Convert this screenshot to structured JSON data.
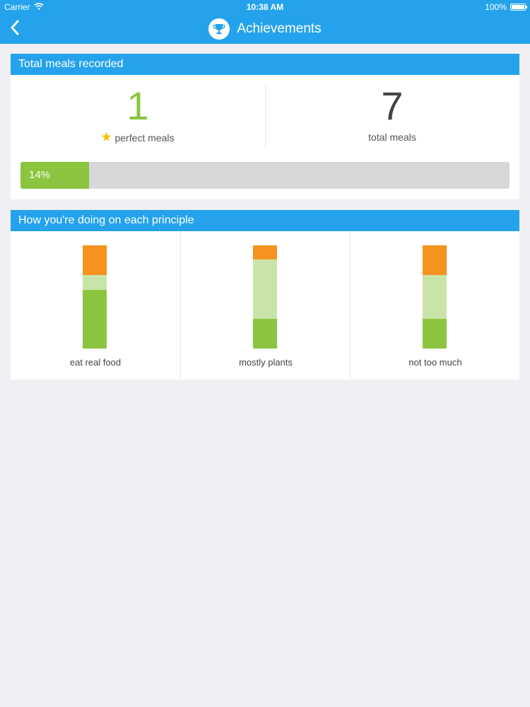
{
  "status_bar": {
    "carrier": "Carrier",
    "time": "10:38 AM",
    "battery": "100%"
  },
  "nav": {
    "title": "Achievements",
    "back_icon": "chevron-left-icon",
    "title_icon": "trophy-icon"
  },
  "meals": {
    "header": "Total meals recorded",
    "perfect_value": "1",
    "perfect_label": "perfect meals",
    "total_value": "7",
    "total_label": "total meals",
    "progress_label": "14%",
    "progress_fraction": 0.14
  },
  "principles": {
    "header": "How you're doing on each principle",
    "items": [
      {
        "label": "eat real food",
        "segments": [
          0.29,
          0.14,
          0.57
        ]
      },
      {
        "label": "mostly plants",
        "segments": [
          0.14,
          0.57,
          0.29
        ]
      },
      {
        "label": "not too much",
        "segments": [
          0.29,
          0.42,
          0.29
        ]
      }
    ]
  },
  "colors": {
    "accent": "#24a3ec",
    "green": "#8bc53f",
    "light_green": "#c9e4a8",
    "orange": "#f6921e",
    "star": "#f5c400",
    "progress_track": "#d7d7d9",
    "background": "#efeff4"
  }
}
